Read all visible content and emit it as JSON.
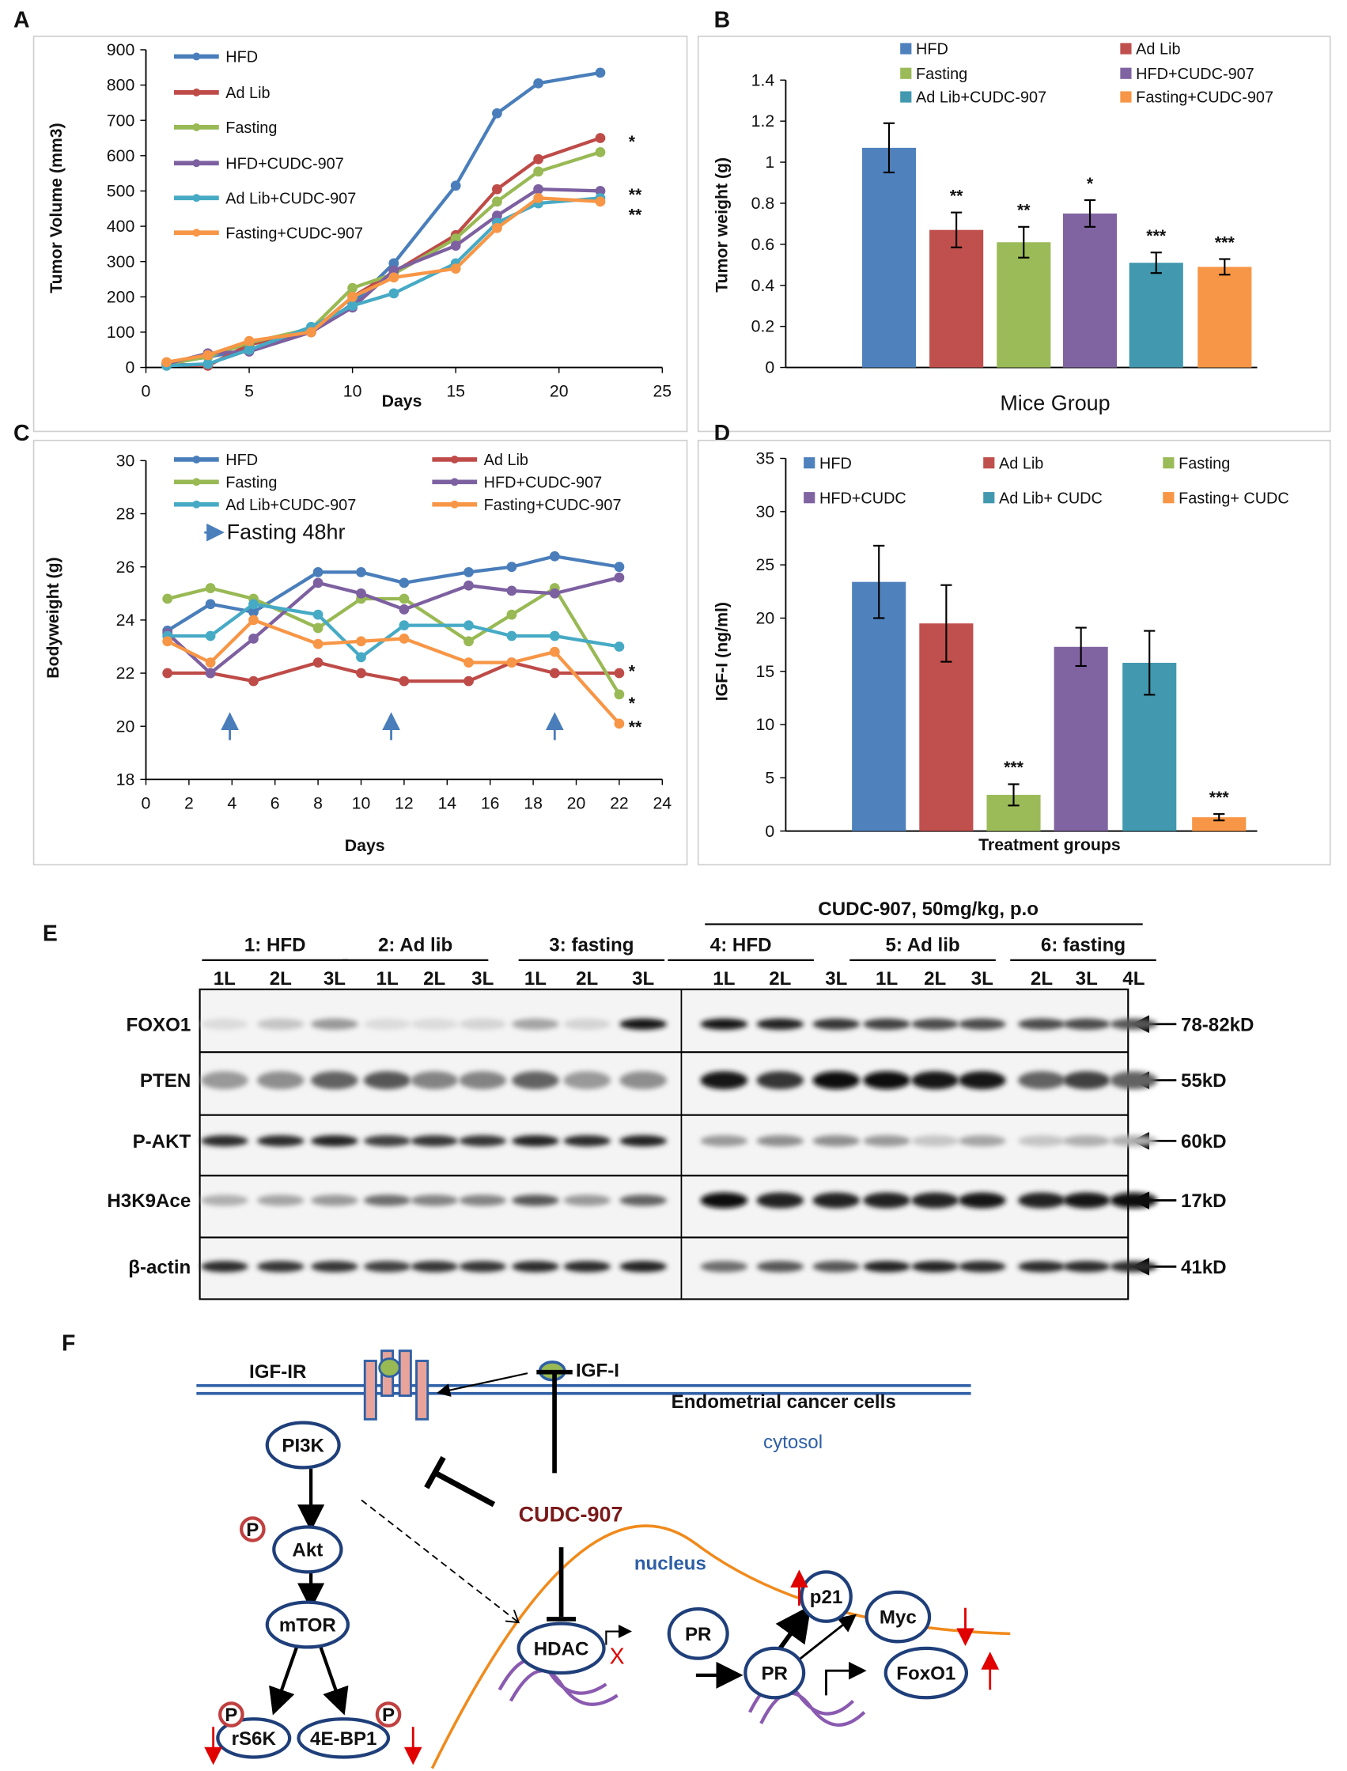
{
  "panels": {
    "A": "A",
    "B": "B",
    "C": "C",
    "D": "D",
    "E": "E",
    "F": "F"
  },
  "colors": {
    "HFD": "#4a7ebb",
    "Ad Lib": "#be4b48",
    "Fasting": "#98b954",
    "HFD+CUDC-907": "#7d60a0",
    "Ad Lib+CUDC-907": "#46aac5",
    "Fasting+CUDC-907": "#f79646",
    "arrow_blue": "#4a7ebb",
    "membrane": "#2e5fa6",
    "nucleus": "#f08a1c",
    "dark_red": "#7a1a1a",
    "red": "#e00000",
    "dna": "#8a5ab0"
  },
  "chart_data": [
    {
      "id": "A",
      "type": "line",
      "xlabel": "Days",
      "ylabel": "Tumor Volume (mm3)",
      "xlim": [
        0,
        25
      ],
      "ylim": [
        0,
        900
      ],
      "xticks": [
        "0",
        "5",
        "10",
        "15",
        "20",
        "25"
      ],
      "yticks": [
        "0",
        "100",
        "200",
        "300",
        "400",
        "500",
        "600",
        "700",
        "800",
        "900"
      ],
      "legend": "top-left",
      "x": [
        1,
        3,
        5,
        8,
        10,
        12,
        15,
        17,
        19,
        22
      ],
      "series": [
        {
          "name": "HFD",
          "values": [
            10,
            30,
            50,
            100,
            180,
            295,
            515,
            720,
            805,
            835
          ]
        },
        {
          "name": "Ad Lib",
          "values": [
            10,
            5,
            65,
            100,
            200,
            270,
            375,
            505,
            590,
            650
          ]
        },
        {
          "name": "Fasting",
          "values": [
            10,
            30,
            70,
            110,
            225,
            265,
            365,
            470,
            555,
            610
          ]
        },
        {
          "name": "HFD+CUDC-907",
          "values": [
            10,
            40,
            45,
            100,
            170,
            275,
            345,
            430,
            505,
            500
          ]
        },
        {
          "name": "Ad Lib+CUDC-907",
          "values": [
            5,
            10,
            50,
            115,
            175,
            210,
            295,
            410,
            465,
            480
          ]
        },
        {
          "name": "Fasting+CUDC-907",
          "values": [
            15,
            35,
            75,
            100,
            200,
            255,
            280,
            395,
            480,
            470
          ]
        }
      ],
      "annotations": [
        {
          "text": "*",
          "y": 650
        },
        {
          "text": "**",
          "y": 500
        },
        {
          "text": "**",
          "y": 465
        }
      ]
    },
    {
      "id": "B",
      "type": "bar",
      "xlabel": "Mice Group",
      "ylabel": "Tumor weight (g)",
      "ylim": [
        0,
        1.4
      ],
      "yticks": [
        "0",
        "0.2",
        "0.4",
        "0.6",
        "0.8",
        "1",
        "1.2",
        "1.4"
      ],
      "legend": "top",
      "categories": [
        "HFD",
        "Ad Lib",
        "Fasting",
        "HFD+CUDC-907",
        "Ad Lib+CUDC-907",
        "Fasting+CUDC-907"
      ],
      "values": [
        1.07,
        0.67,
        0.61,
        0.75,
        0.51,
        0.49
      ],
      "errors": [
        0.12,
        0.085,
        0.075,
        0.065,
        0.05,
        0.038
      ],
      "significance": [
        "",
        "**",
        "**",
        "*",
        "***",
        "***"
      ]
    },
    {
      "id": "C",
      "type": "line",
      "xlabel": "Days",
      "ylabel": "Bodyweight (g)",
      "xlim": [
        0,
        24
      ],
      "ylim": [
        18,
        30
      ],
      "xticks": [
        "0",
        "2",
        "4",
        "6",
        "8",
        "10",
        "12",
        "14",
        "16",
        "18",
        "20",
        "22",
        "24"
      ],
      "yticks": [
        "18",
        "20",
        "22",
        "24",
        "26",
        "28",
        "30"
      ],
      "legend": "top",
      "x": [
        1,
        3,
        5,
        8,
        10,
        12,
        15,
        17,
        19,
        22
      ],
      "series": [
        {
          "name": "HFD",
          "values": [
            23.6,
            24.6,
            24.3,
            25.8,
            25.8,
            25.4,
            25.8,
            26,
            26.4,
            26
          ]
        },
        {
          "name": "Ad Lib",
          "values": [
            22,
            22,
            21.7,
            22.4,
            22,
            21.7,
            21.7,
            22.4,
            22,
            22
          ]
        },
        {
          "name": "Fasting",
          "values": [
            24.8,
            25.2,
            24.8,
            23.7,
            24.8,
            24.8,
            23.2,
            24.2,
            25.2,
            21.2
          ]
        },
        {
          "name": "HFD+CUDC-907",
          "values": [
            23.5,
            22,
            23.3,
            25.4,
            25,
            24.4,
            25.3,
            25.1,
            25,
            25.6
          ]
        },
        {
          "name": "Ad Lib+CUDC-907",
          "values": [
            23.4,
            23.4,
            24.6,
            24.2,
            22.6,
            23.8,
            23.8,
            23.4,
            23.4,
            23
          ]
        },
        {
          "name": "Fasting+CUDC-907",
          "values": [
            23.2,
            22.4,
            24,
            23.1,
            23.2,
            23.3,
            22.4,
            22.4,
            22.8,
            20.1
          ]
        }
      ],
      "fasting_note": "Fasting 48hr",
      "fasting_days": [
        3.9,
        11.4,
        19
      ],
      "annotations": [
        {
          "text": "*",
          "y": 22.2
        },
        {
          "text": "*",
          "y": 21
        },
        {
          "text": "**",
          "y": 20.1
        }
      ]
    },
    {
      "id": "D",
      "type": "bar",
      "xlabel": "Treatment groups",
      "ylabel": "IGF-I (ng/ml)",
      "ylim": [
        0,
        35
      ],
      "yticks": [
        "0",
        "5",
        "10",
        "15",
        "20",
        "25",
        "30",
        "35"
      ],
      "legend": "top",
      "categories": [
        "HFD",
        "Ad Lib",
        "Fasting",
        "HFD+CUDC",
        "Ad Lib+ CUDC",
        "Fasting+ CUDC"
      ],
      "values": [
        23.4,
        19.5,
        3.4,
        17.3,
        15.8,
        1.3
      ],
      "errors": [
        3.4,
        3.6,
        1.0,
        1.8,
        3.0,
        0.3
      ],
      "significance": [
        "",
        "",
        "***",
        "",
        "",
        "***"
      ]
    }
  ],
  "blot": {
    "treatment_header": "CUDC-907, 50mg/kg, p.o",
    "groups": [
      "1: HFD",
      "2: Ad lib",
      "3: fasting",
      "4: HFD",
      "5: Ad lib",
      "6: fasting"
    ],
    "lanes": [
      "1L",
      "2L",
      "3L",
      "1L",
      "2L",
      "3L",
      "1L",
      "2L",
      "3L",
      "1L",
      "2L",
      "3L",
      "1L",
      "2L",
      "3L",
      "2L",
      "3L",
      "4L"
    ],
    "rows": [
      {
        "protein": "FOXO1",
        "size": "78-82kD",
        "intensity": [
          0.05,
          0.15,
          0.35,
          0.05,
          0.05,
          0.08,
          0.3,
          0.08,
          0.95,
          0.95,
          0.9,
          0.8,
          0.75,
          0.7,
          0.7,
          0.7,
          0.7,
          0.65
        ]
      },
      {
        "protein": "PTEN",
        "size": "55kD",
        "intensity": [
          0.35,
          0.4,
          0.6,
          0.65,
          0.45,
          0.45,
          0.6,
          0.35,
          0.4,
          0.95,
          0.8,
          1,
          1,
          0.95,
          0.95,
          0.6,
          0.75,
          0.6
        ]
      },
      {
        "protein": "P-AKT",
        "size": "60kD",
        "intensity": [
          0.85,
          0.85,
          0.9,
          0.75,
          0.8,
          0.8,
          0.9,
          0.85,
          0.9,
          0.35,
          0.4,
          0.4,
          0.35,
          0.15,
          0.3,
          0.15,
          0.25,
          0.25
        ]
      },
      {
        "protein": "H3K9Ace",
        "size": "17kD",
        "intensity": [
          0.25,
          0.3,
          0.35,
          0.55,
          0.45,
          0.45,
          0.65,
          0.35,
          0.6,
          1,
          0.9,
          0.9,
          0.9,
          0.9,
          0.95,
          0.9,
          0.95,
          1
        ]
      },
      {
        "protein": "β-actin",
        "size": "41kD",
        "intensity": [
          0.85,
          0.8,
          0.8,
          0.75,
          0.8,
          0.8,
          0.85,
          0.85,
          0.9,
          0.55,
          0.65,
          0.65,
          0.9,
          0.9,
          0.85,
          0.85,
          0.85,
          0.85
        ]
      }
    ]
  },
  "diagram": {
    "igf_ir": "IGF-IR",
    "igf_i": "IGF-I",
    "cell_label": "Endometrial cancer cells",
    "cytosol": "cytosol",
    "drug": "CUDC-907",
    "nucleus": "nucleus",
    "pi3k": "PI3K",
    "akt": "Akt",
    "mtor": "mTOR",
    "rs6k": "rS6K",
    "ebp1": "4E-BP1",
    "p": "P",
    "hdac": "HDAC",
    "pr": "PR",
    "p21": "p21",
    "myc": "Myc",
    "foxo1": "FoxO1",
    "x_mark": "X"
  }
}
